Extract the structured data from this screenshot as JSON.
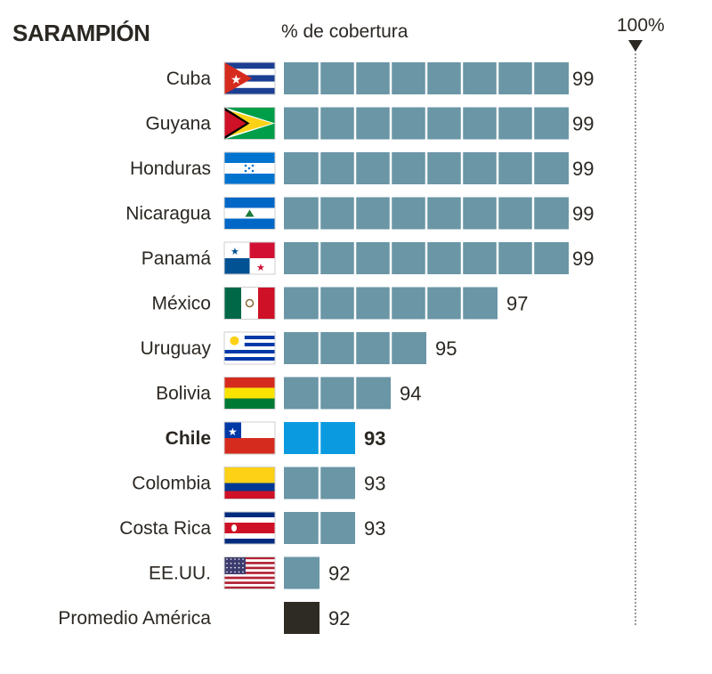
{
  "chart_data": {
    "type": "bar",
    "orientation": "horizontal",
    "title": "SARAMPIÓN",
    "xlabel": "% de cobertura",
    "reference_label": "100%",
    "scale_floor": 90,
    "scale_max": 100,
    "categories": [
      "Cuba",
      "Guyana",
      "Honduras",
      "Nicaragua",
      "Panamá",
      "México",
      "Uruguay",
      "Bolivia",
      "Chile",
      "Colombia",
      "Costa Rica",
      "EE.UU.",
      "Promedio América"
    ],
    "values": [
      99,
      99,
      99,
      99,
      99,
      97,
      95,
      94,
      93,
      93,
      93,
      92,
      92
    ],
    "flags": [
      "cuba-flag",
      "guyana-flag",
      "honduras-flag",
      "nicaragua-flag",
      "panama-flag",
      "mexico-flag",
      "uruguay-flag",
      "bolivia-flag",
      "chile-flag",
      "colombia-flag",
      "costa-rica-flag",
      "usa-flag",
      null
    ],
    "highlight": "Chile",
    "colors": {
      "default_bar": "#6a96a6",
      "highlight_bar": "#0a9ae0",
      "average_bar": "#2e2a24",
      "text": "#2b2722",
      "reference_line": "#9a9a9a"
    }
  }
}
